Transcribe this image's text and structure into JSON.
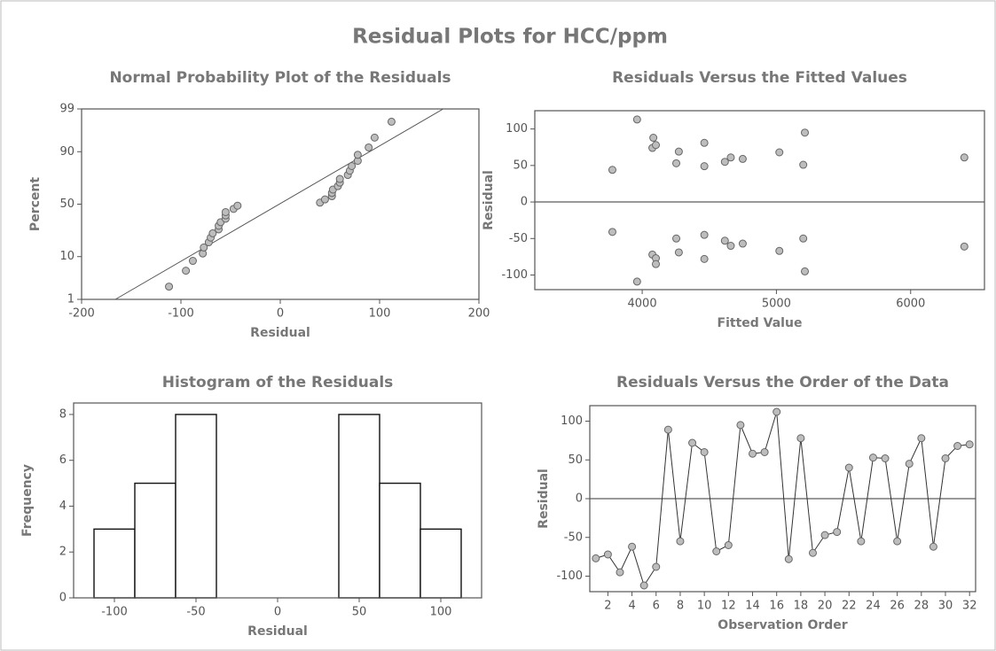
{
  "title": "Residual Plots for HCC/ppm",
  "chart_data": [
    {
      "type": "scatter",
      "yscale": "probability",
      "title": "Normal Probability Plot of the Residuals",
      "xlabel": "Residual",
      "ylabel": "Percent",
      "color": "#bdbdbd",
      "x": [
        -112,
        -95,
        -88,
        -78,
        -77,
        -72,
        -70,
        -68,
        -62,
        -62,
        -60,
        -55,
        -55,
        -55,
        -47,
        -43,
        40,
        45,
        52,
        52,
        53,
        58,
        60,
        60,
        68,
        70,
        72,
        78,
        78,
        89,
        95,
        112
      ],
      "values": [
        2.2,
        5.2,
        8.3,
        11.4,
        14.5,
        17.6,
        20.7,
        23.8,
        26.9,
        29.9,
        33.0,
        36.1,
        39.2,
        42.3,
        45.4,
        48.5,
        51.5,
        54.6,
        57.7,
        60.8,
        63.9,
        67.0,
        70.1,
        73.1,
        76.2,
        79.3,
        82.4,
        85.5,
        88.6,
        91.7,
        94.8,
        97.8
      ],
      "xlim": [
        -200,
        200
      ],
      "xticks": [
        -200,
        -100,
        0,
        100,
        200
      ],
      "ylim": [
        1,
        99
      ],
      "yticks": [
        1,
        10,
        50,
        90,
        99
      ],
      "reference_line": {
        "x": [
          -166,
          164
        ],
        "y": [
          1,
          99
        ]
      }
    },
    {
      "type": "scatter",
      "title": "Residuals Versus the Fitted Values",
      "xlabel": "Fitted Value",
      "ylabel": "Residual",
      "color": "#bdbdbd",
      "x": [
        3778,
        3778,
        3962,
        3962,
        4076,
        4083,
        4102,
        4076,
        4102,
        4102,
        4254,
        4273,
        4254,
        4273,
        4463,
        4463,
        4463,
        4463,
        4616,
        4660,
        4749,
        4616,
        4660,
        4749,
        5022,
        5022,
        5200,
        5212,
        5200,
        5212,
        6400,
        6400
      ],
      "values": [
        44,
        -41,
        113,
        -109,
        74,
        88,
        78,
        -72,
        -77,
        -85,
        53,
        69,
        -50,
        -69,
        81,
        49,
        -45,
        -78,
        55,
        61,
        59,
        -53,
        -60,
        -57,
        68,
        -67,
        51,
        95,
        -50,
        -95,
        61,
        -61
      ],
      "xlim": [
        3200,
        6550
      ],
      "xticks": [
        4000,
        5000,
        6000
      ],
      "ylim": [
        -120,
        125
      ],
      "yticks": [
        -100,
        -50,
        0,
        50,
        100
      ],
      "hline": 0
    },
    {
      "type": "histogram",
      "title": "Histogram of the Residuals",
      "xlabel": "Residual",
      "ylabel": "Frequency",
      "color": "#ffffff",
      "bins": [
        -112.5,
        -87.5,
        -62.5,
        -37.5,
        -12.5,
        12.5,
        37.5,
        62.5,
        87.5,
        112.5
      ],
      "values": [
        3,
        5,
        8,
        0,
        0,
        0,
        8,
        5,
        3
      ],
      "xlim": [
        -125,
        125
      ],
      "xticks": [
        -100,
        -50,
        0,
        50,
        100
      ],
      "ylim": [
        0,
        8.5
      ],
      "yticks": [
        0,
        2,
        4,
        6,
        8
      ]
    },
    {
      "type": "line",
      "title": "Residuals Versus the Order of the Data",
      "xlabel": "Observation Order",
      "ylabel": "Residual",
      "color": "#bdbdbd",
      "x": [
        1,
        2,
        3,
        4,
        5,
        6,
        7,
        8,
        9,
        10,
        11,
        12,
        13,
        14,
        15,
        16,
        17,
        18,
        19,
        20,
        21,
        22,
        23,
        24,
        25,
        26,
        27,
        28,
        29,
        30,
        31,
        32
      ],
      "values": [
        -77,
        -72,
        -95,
        -62,
        -112,
        -88,
        89,
        -55,
        72,
        60,
        -68,
        -60,
        95,
        58,
        60,
        112,
        -78,
        78,
        -70,
        -47,
        -43,
        40,
        -55,
        53,
        52,
        -55,
        45,
        78,
        -62,
        52,
        68,
        70
      ],
      "xlim": [
        0.5,
        32.5
      ],
      "xticks": [
        2,
        4,
        6,
        8,
        10,
        12,
        14,
        16,
        18,
        20,
        22,
        24,
        26,
        28,
        30,
        32
      ],
      "ylim": [
        -120,
        120
      ],
      "yticks": [
        -100,
        -50,
        0,
        50,
        100
      ],
      "hline": 0
    }
  ]
}
